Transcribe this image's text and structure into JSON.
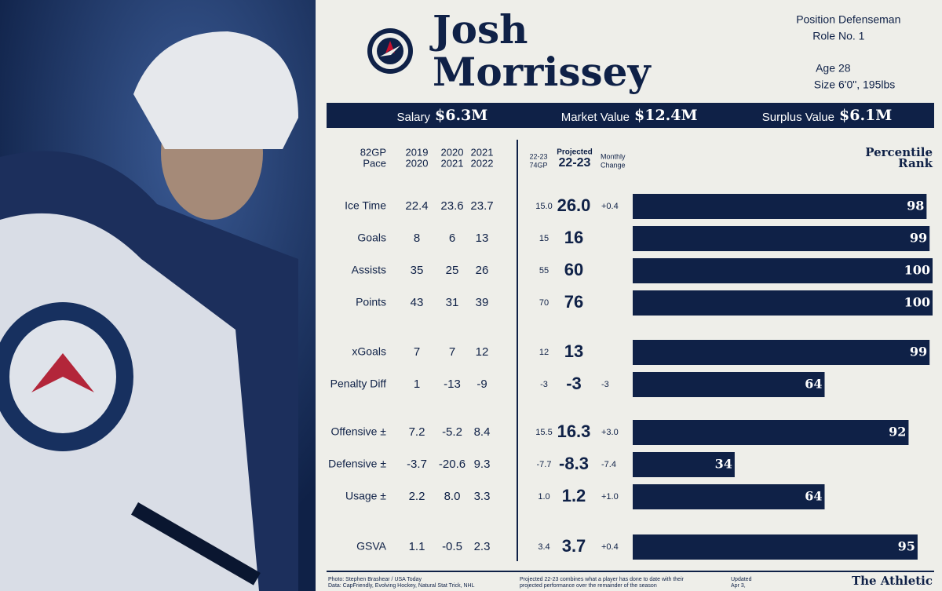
{
  "player": {
    "first_name": "Josh",
    "last_name": "Morrissey"
  },
  "info": [
    {
      "label": "Position",
      "value": "Defenseman"
    },
    {
      "label": "Role",
      "value": "No. 1"
    },
    {
      "label": "Age",
      "value": "28"
    },
    {
      "label": "Size",
      "value": "6'0\", 195lbs"
    }
  ],
  "contract": [
    {
      "label": "Salary",
      "value": "$6.3M"
    },
    {
      "label": "Market Value",
      "value": "$12.4M"
    },
    {
      "label": "Surplus Value",
      "value": "$6.1M"
    }
  ],
  "columns": {
    "pace": [
      "82GP",
      "Pace"
    ],
    "seasons": [
      [
        "2019",
        "2020"
      ],
      [
        "2020",
        "2021"
      ],
      [
        "2021",
        "2022"
      ]
    ],
    "current": [
      "22-23",
      "74GP"
    ],
    "projected": [
      "Projected",
      "22-23"
    ],
    "change": [
      "Monthly",
      "Change"
    ],
    "percentile": [
      "Percentile",
      "Rank"
    ]
  },
  "groups": [
    [
      {
        "label": "Ice Time",
        "seasons": [
          "22.4",
          "23.6",
          "23.7"
        ],
        "current": "15.0",
        "projected": "26.0",
        "change": "+0.4",
        "percentile": 98
      },
      {
        "label": "Goals",
        "seasons": [
          "8",
          "6",
          "13"
        ],
        "current": "15",
        "projected": "16",
        "change": null,
        "percentile": 99
      },
      {
        "label": "Assists",
        "seasons": [
          "35",
          "25",
          "26"
        ],
        "current": "55",
        "projected": "60",
        "change": null,
        "percentile": 100
      },
      {
        "label": "Points",
        "seasons": [
          "43",
          "31",
          "39"
        ],
        "current": "70",
        "projected": "76",
        "change": null,
        "percentile": 100
      }
    ],
    [
      {
        "label": "xGoals",
        "seasons": [
          "7",
          "7",
          "12"
        ],
        "current": "12",
        "projected": "13",
        "change": null,
        "percentile": 99
      },
      {
        "label": "Penalty Diff",
        "seasons": [
          "1",
          "-13",
          "-9"
        ],
        "current": "-3",
        "projected": "-3",
        "change": "-3",
        "percentile": 64
      }
    ],
    [
      {
        "label": "Offensive ±",
        "seasons": [
          "7.2",
          "-5.2",
          "8.4"
        ],
        "current": "15.5",
        "projected": "16.3",
        "change": "+3.0",
        "percentile": 92
      },
      {
        "label": "Defensive ±",
        "seasons": [
          "-3.7",
          "-20.6",
          "9.3"
        ],
        "current": "-7.7",
        "projected": "-8.3",
        "change": "-7.4",
        "percentile": 34
      },
      {
        "label": "Usage ±",
        "seasons": [
          "2.2",
          "8.0",
          "3.3"
        ],
        "current": "1.0",
        "projected": "1.2",
        "change": "+1.0",
        "percentile": 64
      }
    ],
    [
      {
        "label": "GSVA",
        "seasons": [
          "1.1",
          "-0.5",
          "2.3"
        ],
        "current": "3.4",
        "projected": "3.7",
        "change": "+0.4",
        "percentile": 95
      }
    ]
  ],
  "footer": {
    "credits": [
      "Photo: Stephen Brashear / USA Today",
      "Data: CapFriendly, Evolving Hockey, Natural Stat Trick, NHL"
    ],
    "note": [
      "Projected 22-23 combines what a player has done to date with their",
      "projected performance over the remainder of the season"
    ],
    "updated": [
      "Updated",
      "Apr 3,"
    ],
    "brand": "The Athletic"
  }
}
